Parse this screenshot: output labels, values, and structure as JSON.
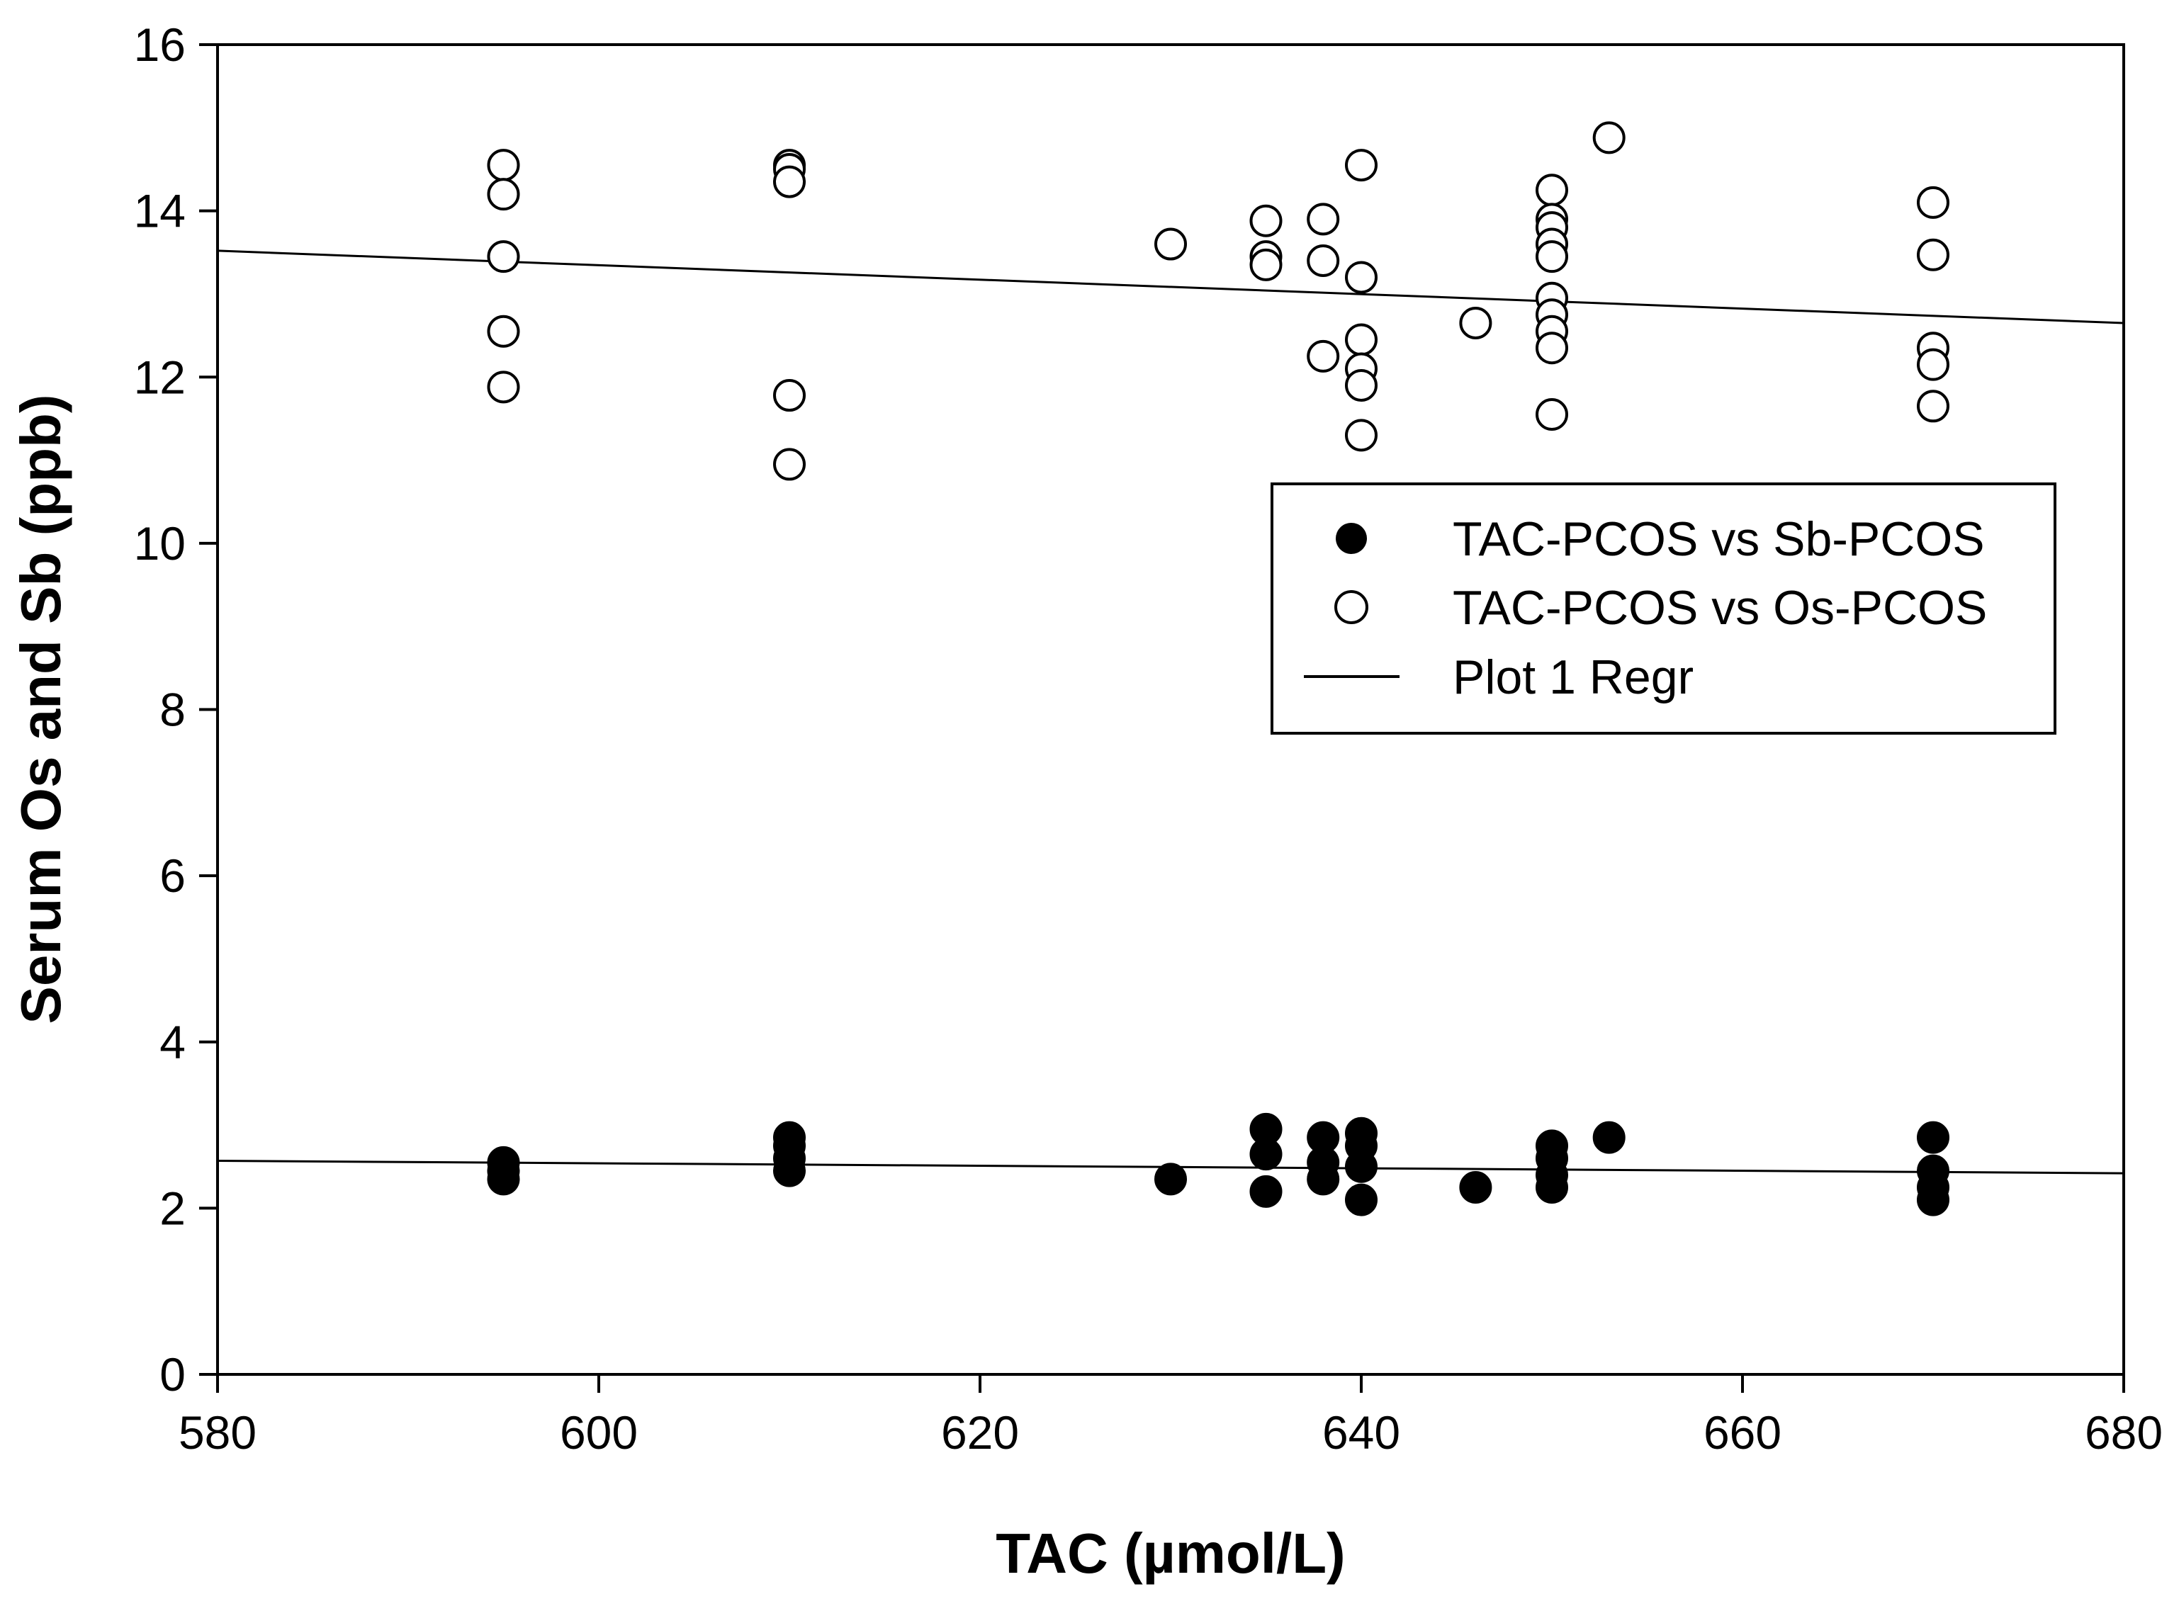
{
  "chart_data": {
    "type": "scatter",
    "title": "",
    "xlabel": "TAC (µmol/L)",
    "ylabel": "Serum Os and Sb (ppb)",
    "xlim": [
      580,
      680
    ],
    "ylim": [
      0,
      16
    ],
    "xticks": [
      580,
      600,
      620,
      640,
      660,
      680
    ],
    "yticks": [
      0,
      2,
      4,
      6,
      8,
      10,
      12,
      14,
      16
    ],
    "grid": false,
    "legend_position": "center-right",
    "series": [
      {
        "name": "TAC-PCOS vs Sb-PCOS",
        "marker": "filled-circle",
        "color": "#000000",
        "points": [
          [
            595,
            2.55
          ],
          [
            595,
            2.45
          ],
          [
            595,
            2.35
          ],
          [
            610,
            2.85
          ],
          [
            610,
            2.75
          ],
          [
            610,
            2.6
          ],
          [
            610,
            2.45
          ],
          [
            630,
            2.35
          ],
          [
            635,
            2.95
          ],
          [
            635,
            2.65
          ],
          [
            635,
            2.2
          ],
          [
            638,
            2.85
          ],
          [
            638,
            2.55
          ],
          [
            638,
            2.35
          ],
          [
            640,
            2.9
          ],
          [
            640,
            2.75
          ],
          [
            640,
            2.5
          ],
          [
            640,
            2.1
          ],
          [
            646,
            2.25
          ],
          [
            650,
            2.75
          ],
          [
            650,
            2.6
          ],
          [
            650,
            2.4
          ],
          [
            650,
            2.25
          ],
          [
            653,
            2.85
          ],
          [
            670,
            2.85
          ],
          [
            670,
            2.45
          ],
          [
            670,
            2.25
          ],
          [
            670,
            2.1
          ]
        ],
        "regression": [
          [
            580,
            2.57
          ],
          [
            680,
            2.42
          ]
        ]
      },
      {
        "name": "TAC-PCOS vs Os-PCOS",
        "marker": "open-circle",
        "color": "#000000",
        "points": [
          [
            595,
            14.55
          ],
          [
            595,
            14.2
          ],
          [
            595,
            13.45
          ],
          [
            595,
            12.55
          ],
          [
            595,
            11.88
          ],
          [
            610,
            14.55
          ],
          [
            610,
            14.5
          ],
          [
            610,
            14.35
          ],
          [
            610,
            11.78
          ],
          [
            610,
            10.95
          ],
          [
            630,
            13.6
          ],
          [
            635,
            13.88
          ],
          [
            635,
            13.45
          ],
          [
            635,
            13.35
          ],
          [
            638,
            13.9
          ],
          [
            638,
            13.4
          ],
          [
            638,
            12.25
          ],
          [
            640,
            14.55
          ],
          [
            640,
            13.2
          ],
          [
            640,
            12.45
          ],
          [
            640,
            12.1
          ],
          [
            640,
            11.9
          ],
          [
            640,
            11.3
          ],
          [
            646,
            12.65
          ],
          [
            650,
            14.25
          ],
          [
            650,
            13.9
          ],
          [
            650,
            13.8
          ],
          [
            650,
            13.6
          ],
          [
            650,
            13.45
          ],
          [
            650,
            12.95
          ],
          [
            650,
            12.75
          ],
          [
            650,
            12.55
          ],
          [
            650,
            12.35
          ],
          [
            650,
            11.55
          ],
          [
            653,
            14.88
          ],
          [
            670,
            14.1
          ],
          [
            670,
            13.47
          ],
          [
            670,
            12.35
          ],
          [
            670,
            12.15
          ],
          [
            670,
            11.65
          ]
        ],
        "regression": [
          [
            580,
            13.52
          ],
          [
            680,
            12.65
          ]
        ]
      }
    ],
    "legend": [
      {
        "label": "TAC-PCOS vs Sb-PCOS",
        "symbol": "filled-circle"
      },
      {
        "label": "TAC-PCOS vs Os-PCOS",
        "symbol": "open-circle"
      },
      {
        "label": "Plot 1 Regr",
        "symbol": "line"
      }
    ]
  }
}
